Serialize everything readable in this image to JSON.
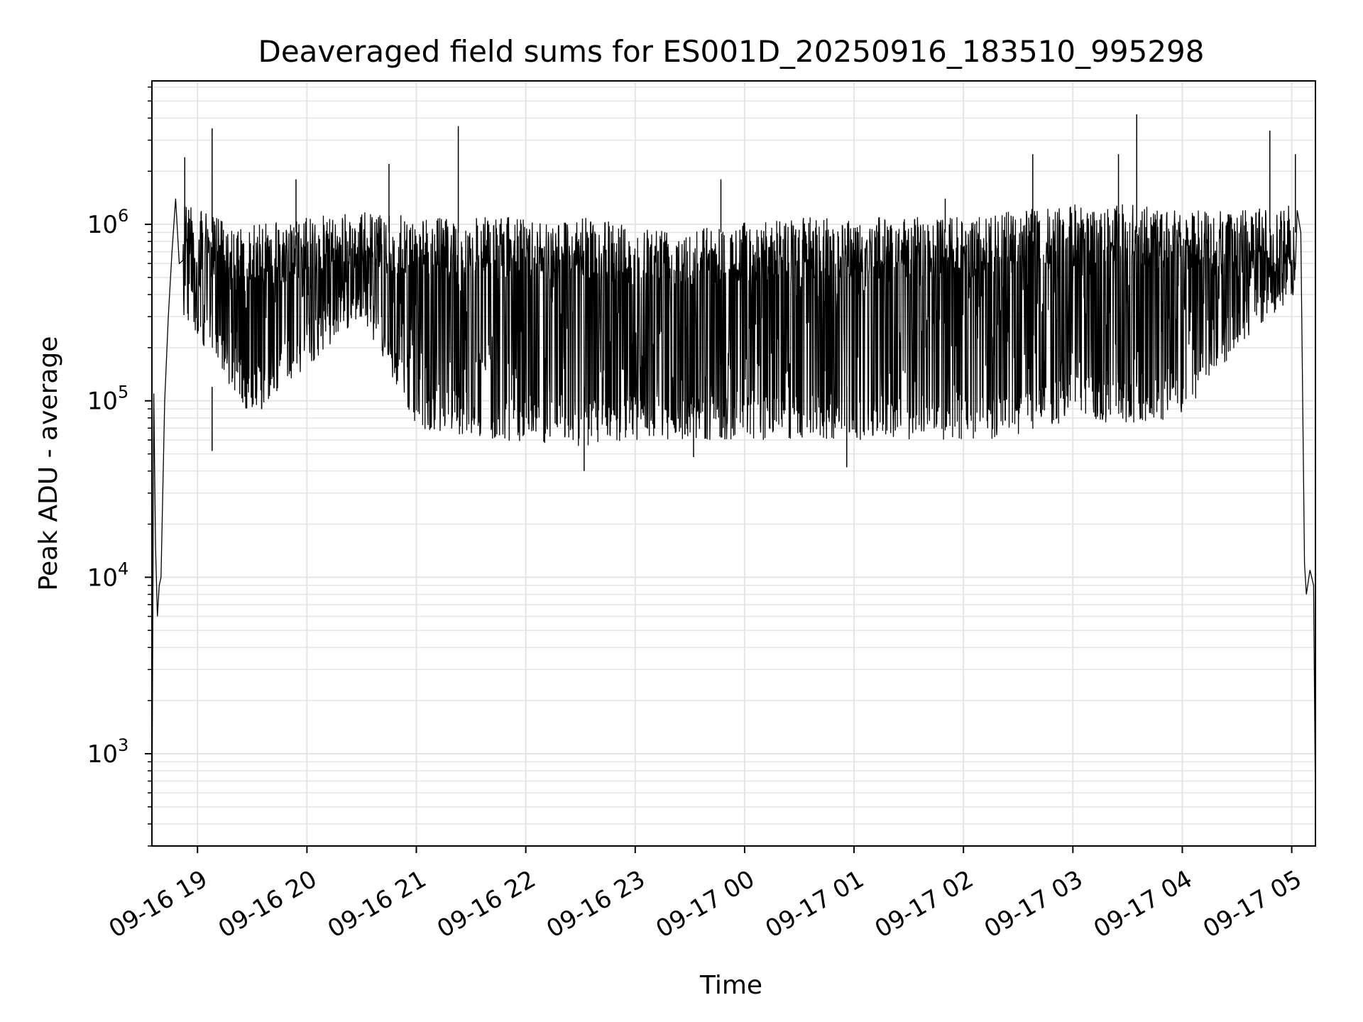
{
  "chart_data": {
    "type": "line",
    "title": "Deaveraged field sums for ES001D_20250916_183510_995298",
    "xlabel": "Time",
    "ylabel": "Peak ADU - average",
    "yscale": "log",
    "ylim": [
      300,
      6500000
    ],
    "xlim": [
      "2025-09-16T18:35",
      "2025-09-17T05:13"
    ],
    "grid": true,
    "line_color": "#000000",
    "x_ticks": [
      {
        "time": "2025-09-16T19:00",
        "label": "09-16 19"
      },
      {
        "time": "2025-09-16T20:00",
        "label": "09-16 20"
      },
      {
        "time": "2025-09-16T21:00",
        "label": "09-16 21"
      },
      {
        "time": "2025-09-16T22:00",
        "label": "09-16 22"
      },
      {
        "time": "2025-09-16T23:00",
        "label": "09-16 23"
      },
      {
        "time": "2025-09-17T00:00",
        "label": "09-17 00"
      },
      {
        "time": "2025-09-17T01:00",
        "label": "09-17 01"
      },
      {
        "time": "2025-09-17T02:00",
        "label": "09-17 02"
      },
      {
        "time": "2025-09-17T03:00",
        "label": "09-17 03"
      },
      {
        "time": "2025-09-17T04:00",
        "label": "09-17 04"
      },
      {
        "time": "2025-09-17T05:00",
        "label": "09-17 05"
      }
    ],
    "y_ticks": [
      {
        "value": 1000,
        "base": "10",
        "exp": "3"
      },
      {
        "value": 10000,
        "base": "10",
        "exp": "4"
      },
      {
        "value": 100000,
        "base": "10",
        "exp": "5"
      },
      {
        "value": 1000000,
        "base": "10",
        "exp": "6"
      }
    ],
    "series": [
      {
        "x": [
          "2025-09-16T18:35",
          "2025-09-16T18:36",
          "2025-09-16T18:37",
          "2025-09-16T18:38",
          "2025-09-16T18:39",
          "2025-09-16T18:40",
          "2025-09-16T18:42",
          "2025-09-16T18:44",
          "2025-09-16T18:46",
          "2025-09-16T18:48",
          "2025-09-16T18:50",
          "2025-09-16T18:52",
          "2025-09-16T18:54",
          "2025-09-16T18:56",
          "2025-09-16T19:00",
          "2025-09-16T19:10",
          "2025-09-16T19:20",
          "2025-09-16T19:30",
          "2025-09-16T19:40",
          "2025-09-16T19:50",
          "2025-09-16T20:00",
          "2025-09-16T20:20",
          "2025-09-16T20:40",
          "2025-09-16T21:00",
          "2025-09-16T21:20",
          "2025-09-16T21:40",
          "2025-09-16T22:00",
          "2025-09-16T22:20",
          "2025-09-16T22:40",
          "2025-09-16T23:00",
          "2025-09-16T23:20",
          "2025-09-16T23:40",
          "2025-09-17T00:00",
          "2025-09-17T00:20",
          "2025-09-17T00:40",
          "2025-09-17T01:00",
          "2025-09-17T01:20",
          "2025-09-17T01:40",
          "2025-09-17T02:00",
          "2025-09-17T02:20",
          "2025-09-17T02:40",
          "2025-09-17T03:00",
          "2025-09-17T03:20",
          "2025-09-17T03:40",
          "2025-09-17T04:00",
          "2025-09-17T04:20",
          "2025-09-17T04:40",
          "2025-09-17T05:00",
          "2025-09-17T05:03",
          "2025-09-17T05:05",
          "2025-09-17T05:07",
          "2025-09-17T05:08",
          "2025-09-17T05:10",
          "2025-09-17T05:12",
          "2025-09-17T05:13"
        ],
        "y": [
          350,
          110000,
          15000,
          6000,
          9000,
          10000,
          100000,
          300000,
          700000,
          1400000,
          600000,
          500000,
          700000,
          600000,
          600000,
          500000,
          700000,
          600000,
          500000,
          700000,
          650000,
          600000,
          500000,
          500000,
          450000,
          400000,
          300000,
          250000,
          200000,
          200000,
          220000,
          200000,
          200000,
          220000,
          200000,
          220000,
          230000,
          250000,
          280000,
          300000,
          350000,
          400000,
          500000,
          550000,
          600000,
          600000,
          650000,
          700000,
          1200000,
          900000,
          12000,
          8000,
          11000,
          9000,
          500
        ]
      }
    ],
    "variability": {
      "envelope_x": [
        "2025-09-16T18:52",
        "2025-09-16T19:30",
        "2025-09-16T20:30",
        "2025-09-16T21:00",
        "2025-09-16T21:45",
        "2025-09-16T22:30",
        "2025-09-16T23:00",
        "2025-09-16T23:45",
        "2025-09-17T00:30",
        "2025-09-17T01:00",
        "2025-09-17T02:00",
        "2025-09-17T02:30",
        "2025-09-17T03:00",
        "2025-09-17T03:30",
        "2025-09-17T04:00",
        "2025-09-17T04:30",
        "2025-09-17T05:02"
      ],
      "upper": [
        1300000,
        1000000,
        1200000,
        1100000,
        1100000,
        1100000,
        1000000,
        1000000,
        1100000,
        1100000,
        1100000,
        1200000,
        1300000,
        1300000,
        1200000,
        1200000,
        1300000
      ],
      "lower": [
        300000,
        80000,
        300000,
        70000,
        60000,
        55000,
        60000,
        60000,
        60000,
        60000,
        60000,
        60000,
        80000,
        70000,
        80000,
        200000,
        400000
      ]
    },
    "spikes": [
      {
        "x": "2025-09-16T18:53",
        "y": 2400000
      },
      {
        "x": "2025-09-16T19:08",
        "y": 3500000
      },
      {
        "x": "2025-09-16T19:54",
        "y": 1800000
      },
      {
        "x": "2025-09-16T20:45",
        "y": 2200000
      },
      {
        "x": "2025-09-16T21:23",
        "y": 3600000
      },
      {
        "x": "2025-09-16T23:47",
        "y": 1800000
      },
      {
        "x": "2025-09-17T01:50",
        "y": 1400000
      },
      {
        "x": "2025-09-17T02:38",
        "y": 2500000
      },
      {
        "x": "2025-09-17T03:25",
        "y": 2500000
      },
      {
        "x": "2025-09-17T03:35",
        "y": 4200000
      },
      {
        "x": "2025-09-17T04:48",
        "y": 3400000
      },
      {
        "x": "2025-09-17T05:02",
        "y": 2500000
      }
    ],
    "dips": [
      {
        "x": "2025-09-16T22:32",
        "y": 40000
      },
      {
        "x": "2025-09-17T00:56",
        "y": 42000
      },
      {
        "x": "2025-09-16T23:32",
        "y": 48000
      },
      {
        "x": "2025-09-16T19:08",
        "y": 52000
      }
    ]
  }
}
